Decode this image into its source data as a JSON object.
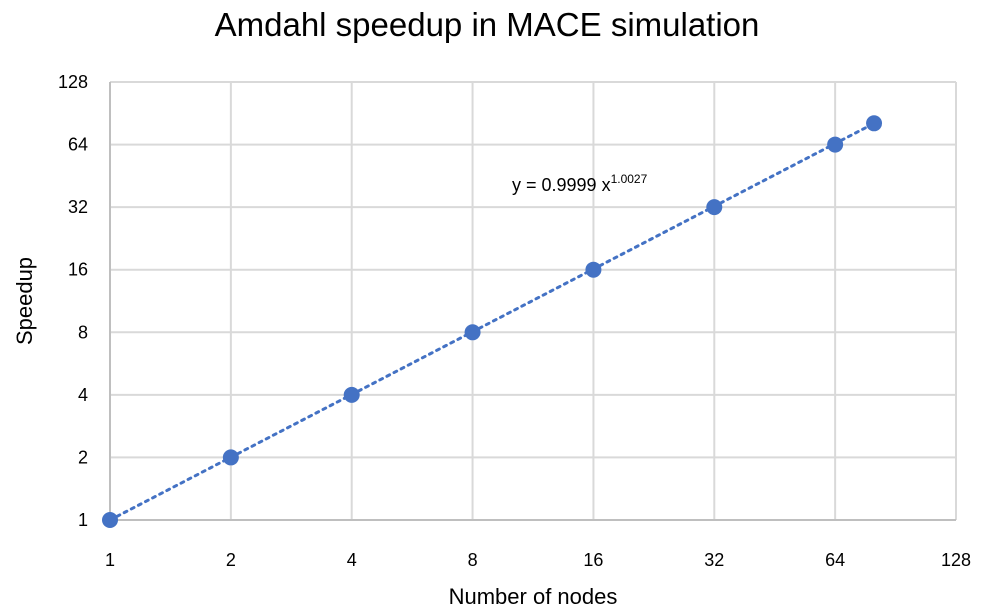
{
  "chart_data": {
    "type": "scatter",
    "title": "Amdahl speedup in MACE simulation",
    "xlabel": "Number of nodes",
    "ylabel": "Speedup",
    "xscale": "log2",
    "yscale": "log2",
    "xlim": [
      1,
      128
    ],
    "ylim": [
      1,
      128
    ],
    "x_ticks": [
      "1",
      "2",
      "4",
      "8",
      "16",
      "32",
      "64",
      "128"
    ],
    "y_ticks": [
      "1",
      "2",
      "4",
      "8",
      "16",
      "32",
      "64",
      "128"
    ],
    "grid": true,
    "legend": "none",
    "series": [
      {
        "x": [
          1,
          2,
          4,
          8,
          16,
          32,
          64,
          80
        ],
        "y": [
          1,
          2,
          4,
          8,
          16,
          32,
          64,
          81
        ],
        "color": "#4472C4",
        "marker": "circle"
      }
    ],
    "trendline": {
      "type": "power",
      "coefficient": 0.9999,
      "exponent": 1.0027,
      "style": "dotted",
      "color": "#4472C4",
      "equation_base": "y = 0.9999 x",
      "equation_exponent": "1.0027"
    }
  }
}
